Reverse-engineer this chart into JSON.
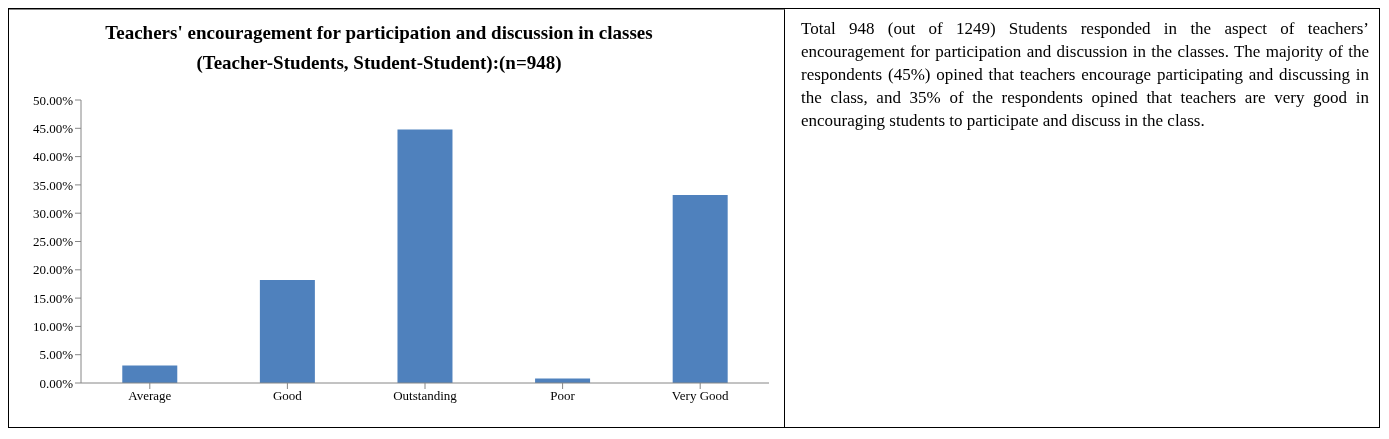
{
  "chart_data": {
    "type": "bar",
    "title": "Teachers' encouragement for participation and discussion in classes (Teacher-Students, Student-Student):(n=948)",
    "categories": [
      "Average",
      "Good",
      "Outstanding",
      "Poor",
      "Very Good"
    ],
    "values": [
      3.1,
      18.2,
      44.8,
      0.8,
      33.2
    ],
    "color": "#4f81bd",
    "ylim": [
      0,
      50
    ],
    "yticks": [
      {
        "value": 0,
        "label": "0.00%"
      },
      {
        "value": 5,
        "label": "5.00%"
      },
      {
        "value": 10,
        "label": "10.00%"
      },
      {
        "value": 15,
        "label": "15.00%"
      },
      {
        "value": 20,
        "label": "20.00%"
      },
      {
        "value": 25,
        "label": "25.00%"
      },
      {
        "value": 30,
        "label": "30.00%"
      },
      {
        "value": 35,
        "label": "35.00%"
      },
      {
        "value": 40,
        "label": "40.00%"
      },
      {
        "value": 45,
        "label": "45.00%"
      },
      {
        "value": 50,
        "label": "50.00%"
      }
    ],
    "annotations": [
      "Total 948 (out of 1249) Students responded in the aspect of teachers’ encouragement for participation and discussion in the classes. The majority of the respondents (45%) opined that teachers encourage participating and discussing in the class, and 35% of the respondents opined that teachers are very good in encouraging students to participate and discuss in the class."
    ]
  }
}
